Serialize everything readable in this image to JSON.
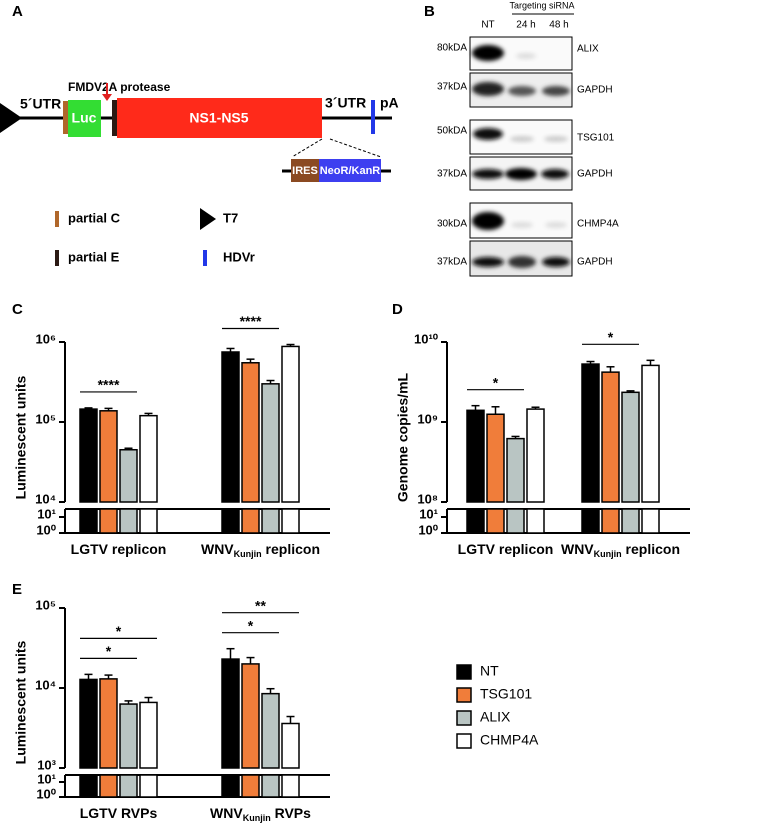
{
  "diagram": {
    "label": "A",
    "utr5": "5´UTR",
    "luc": "Luc",
    "protease": "FMDV2A protease",
    "ns": "NS1-NS5",
    "utr3": "3´UTR",
    "pa": "pA",
    "ires": "IRES",
    "neo": "NeoR/KanR",
    "legend": {
      "partial_c": "partial C",
      "t7": "T7",
      "partial_e": "partial E",
      "hdvr": "HDVr"
    }
  },
  "blot": {
    "label": "B",
    "targeting": "Targeting siRNA",
    "lanes": [
      "NT",
      "24 h",
      "48 h"
    ],
    "rows": [
      {
        "size": "80kDA",
        "protein": "ALIX"
      },
      {
        "size": "37kDA",
        "protein": "GAPDH"
      },
      {
        "size": "50kDA",
        "protein": "TSG101"
      },
      {
        "size": "37kDA",
        "protein": "GAPDH"
      },
      {
        "size": "30kDA",
        "protein": "CHMP4A"
      },
      {
        "size": "37kDA",
        "protein": "GAPDH"
      }
    ]
  },
  "chart_data": [
    {
      "type": "bar",
      "panel_label": "C",
      "y_label": "Luminescent units",
      "y_scale": "log",
      "categories": [
        [
          {
            "text": "LGTV replicon"
          }
        ],
        [
          {
            "text": "WNV"
          },
          {
            "text": "Kunjin",
            "sub": true
          },
          {
            "text": " replicon"
          }
        ]
      ],
      "ylim": [
        10000,
        1000000
      ],
      "yticks": [
        {
          "value": 10000,
          "label": "10⁴"
        },
        {
          "value": 100000,
          "label": "10⁵"
        },
        {
          "value": 1000000,
          "label": "10⁶"
        }
      ],
      "y_break_lim": [
        1,
        10
      ],
      "y_break_ticks": [
        {
          "value": 1,
          "label": "10⁰"
        },
        {
          "value": 10,
          "label": "10¹"
        }
      ],
      "series": [
        {
          "color": "#000000",
          "values": [
            145000,
            750000
          ],
          "errors": [
            5000,
            80000
          ]
        },
        {
          "color": "#f07d3a",
          "values": [
            138000,
            550000
          ],
          "errors": [
            10000,
            60000
          ]
        },
        {
          "color": "#b9c5c3",
          "values": [
            45000,
            300000
          ],
          "errors": [
            2000,
            30000
          ]
        },
        {
          "color": "#ffffff",
          "values": [
            120000,
            880000
          ],
          "errors": [
            8000,
            50000
          ]
        }
      ],
      "annotations": [
        {
          "text": "****",
          "category": 0,
          "from": 0,
          "to": 2
        },
        {
          "text": "****",
          "category": 1,
          "from": 0,
          "to": 2
        }
      ]
    },
    {
      "type": "bar",
      "panel_label": "D",
      "y_label": "Genome copies/mL",
      "y_scale": "log",
      "categories": [
        [
          {
            "text": "LGTV replicon"
          }
        ],
        [
          {
            "text": "WNV"
          },
          {
            "text": "Kunjin",
            "sub": true
          },
          {
            "text": " replicon"
          }
        ]
      ],
      "ylim": [
        100000000,
        10000000000
      ],
      "yticks": [
        {
          "value": 100000000,
          "label": "10⁸"
        },
        {
          "value": 1000000000,
          "label": "10⁹"
        },
        {
          "value": 10000000000,
          "label": "10¹⁰"
        }
      ],
      "y_break_lim": [
        1,
        10
      ],
      "y_break_ticks": [
        {
          "value": 1,
          "label": "10⁰"
        },
        {
          "value": 10,
          "label": "10¹"
        }
      ],
      "series": [
        {
          "color": "#000000",
          "values": [
            1400000000,
            5300000000
          ],
          "errors": [
            200000000,
            400000000
          ]
        },
        {
          "color": "#f07d3a",
          "values": [
            1250000000,
            4200000000
          ],
          "errors": [
            300000000,
            700000000
          ]
        },
        {
          "color": "#b9c5c3",
          "values": [
            620000000,
            2350000000
          ],
          "errors": [
            40000000,
            100000000
          ]
        },
        {
          "color": "#ffffff",
          "values": [
            1450000000,
            5100000000
          ],
          "errors": [
            80000000,
            800000000
          ]
        }
      ],
      "annotations": [
        {
          "text": "*",
          "category": 0,
          "from": 0,
          "to": 2
        },
        {
          "text": "*",
          "category": 1,
          "from": 0,
          "to": 2
        }
      ]
    },
    {
      "type": "bar",
      "panel_label": "E",
      "y_label": "Luminescent units",
      "y_scale": "log",
      "legend": "right",
      "categories": [
        [
          {
            "text": "LGTV RVPs"
          }
        ],
        [
          {
            "text": "WNV"
          },
          {
            "text": "Kunjin",
            "sub": true
          },
          {
            "text": " RVPs"
          }
        ]
      ],
      "ylim": [
        1000,
        100000
      ],
      "yticks": [
        {
          "value": 1000,
          "label": "10³"
        },
        {
          "value": 10000,
          "label": "10⁴"
        },
        {
          "value": 100000,
          "label": "10⁵"
        }
      ],
      "y_break_lim": [
        1,
        10
      ],
      "y_break_ticks": [
        {
          "value": 1,
          "label": "10⁰"
        },
        {
          "value": 10,
          "label": "10¹"
        }
      ],
      "series": [
        {
          "name": "NT",
          "color": "#000000",
          "values": [
            12800,
            23000
          ],
          "errors": [
            2000,
            8000
          ]
        },
        {
          "name": "TSG101",
          "color": "#f07d3a",
          "values": [
            13000,
            20000
          ],
          "errors": [
            1500,
            4000
          ]
        },
        {
          "name": "ALIX",
          "color": "#b9c5c3",
          "values": [
            6300,
            8500
          ],
          "errors": [
            600,
            1300
          ]
        },
        {
          "name": "CHMP4A",
          "color": "#ffffff",
          "values": [
            6600,
            3600
          ],
          "errors": [
            1000,
            800
          ]
        }
      ],
      "annotations": [
        {
          "text": "*",
          "category": 0,
          "from": 0,
          "to": 2
        },
        {
          "text": "*",
          "category": 0,
          "from": 0,
          "to": 3
        },
        {
          "text": "*",
          "category": 1,
          "from": 0,
          "to": 2
        },
        {
          "text": "**",
          "category": 1,
          "from": 0,
          "to": 3
        }
      ]
    }
  ]
}
